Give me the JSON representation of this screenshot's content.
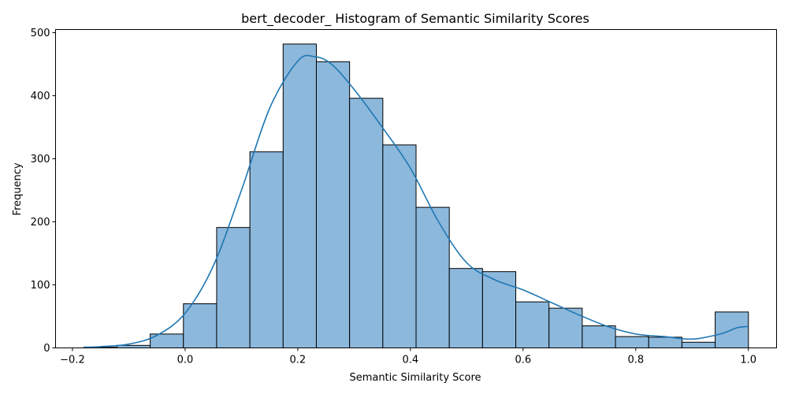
{
  "chart_data": {
    "type": "histogram",
    "title": "bert_decoder_ Histogram of Semantic Similarity Scores",
    "xlabel": "Semantic Similarity Score",
    "ylabel": "Frequency",
    "xlim": [
      -0.23,
      1.05
    ],
    "ylim": [
      0,
      505
    ],
    "xticks": [
      -0.2,
      0.0,
      0.2,
      0.4,
      0.6,
      0.8,
      1.0
    ],
    "xtick_labels": [
      "−0.2",
      "0.0",
      "0.2",
      "0.4",
      "0.6",
      "0.8",
      "1.0"
    ],
    "yticks": [
      0,
      100,
      200,
      300,
      400,
      500
    ],
    "ytick_labels": [
      "0",
      "100",
      "200",
      "300",
      "400",
      "500"
    ],
    "bin_edges": [
      -0.18,
      -0.121,
      -0.062,
      -0.003,
      0.056,
      0.115,
      0.174,
      0.233,
      0.292,
      0.351,
      0.41,
      0.469,
      0.528,
      0.587,
      0.646,
      0.705,
      0.764,
      0.823,
      0.882,
      0.941,
      1.0
    ],
    "counts": [
      1,
      4,
      22,
      70,
      191,
      311,
      482,
      454,
      396,
      322,
      223,
      126,
      121,
      73,
      63,
      35,
      18,
      17,
      9,
      57
    ],
    "bar_color": "#8cb8dc",
    "bar_edge_color": "#000000",
    "kde_color": "#1f77b4",
    "kde": {
      "x": [
        -0.18,
        -0.15,
        -0.1,
        -0.05,
        0.0,
        0.05,
        0.1,
        0.15,
        0.2,
        0.23,
        0.26,
        0.3,
        0.35,
        0.4,
        0.45,
        0.5,
        0.55,
        0.6,
        0.65,
        0.7,
        0.75,
        0.8,
        0.85,
        0.9,
        0.95,
        0.98,
        1.0
      ],
      "y": [
        1,
        2,
        6,
        20,
        55,
        130,
        250,
        380,
        455,
        462,
        450,
        410,
        350,
        285,
        200,
        135,
        108,
        92,
        72,
        52,
        34,
        22,
        18,
        14,
        22,
        32,
        34
      ]
    },
    "grid": false,
    "legend": "none"
  }
}
